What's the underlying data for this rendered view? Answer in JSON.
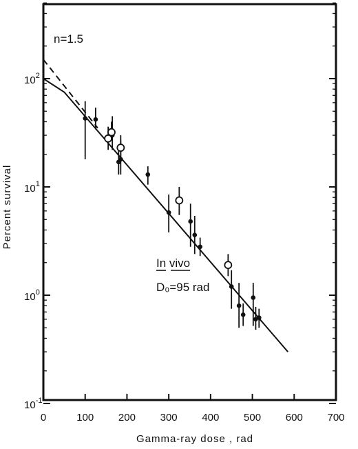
{
  "chart_data": {
    "type": "scatter",
    "title": "",
    "xlabel": "Gamma-ray dose , rad",
    "ylabel": "Percent survival",
    "x_scale": "linear",
    "y_scale": "log",
    "xlim": [
      0,
      700
    ],
    "ylim": [
      0.1,
      500
    ],
    "grid": false,
    "x_ticks": [
      {
        "value": 0,
        "label": "0"
      },
      {
        "value": 100,
        "label": "100"
      },
      {
        "value": 200,
        "label": "200"
      },
      {
        "value": 300,
        "label": "300"
      },
      {
        "value": 400,
        "label": "400"
      },
      {
        "value": 500,
        "label": "500"
      },
      {
        "value": 600,
        "label": "600"
      },
      {
        "value": 700,
        "label": "700"
      }
    ],
    "y_ticks": [
      {
        "value": 100,
        "base": "10",
        "exp": "2"
      },
      {
        "value": 10,
        "base": "10",
        "exp": "1"
      },
      {
        "value": 1,
        "base": "10",
        "exp": "0"
      },
      {
        "value": 0.1,
        "base": "10",
        "exp": "-1"
      }
    ],
    "annotations": {
      "n_label": "n=1.5",
      "condition": "In vivo",
      "d0_label": "D₀=95 rad"
    },
    "fit_line": {
      "x": [
        0,
        50,
        585
      ],
      "y": [
        100,
        75,
        0.3
      ]
    },
    "extrapolation": {
      "x": [
        0,
        130
      ],
      "y": [
        150,
        35
      ]
    },
    "series": [
      {
        "marker": "filled",
        "points": [
          {
            "x": 100,
            "y": 43,
            "lo": 18,
            "hi": 62
          },
          {
            "x": 125,
            "y": 42,
            "lo": 34,
            "hi": 54
          },
          {
            "x": 165,
            "y": 30,
            "lo": 22,
            "hi": 45
          },
          {
            "x": 180,
            "y": 17,
            "lo": 13,
            "hi": 24
          },
          {
            "x": 185,
            "y": 18,
            "lo": 13,
            "hi": 27
          },
          {
            "x": 250,
            "y": 13,
            "lo": 10.5,
            "hi": 15.5
          },
          {
            "x": 300,
            "y": 5.8,
            "lo": 3.8,
            "hi": 8.5
          },
          {
            "x": 352,
            "y": 4.8,
            "lo": 2.8,
            "hi": 7.0
          },
          {
            "x": 362,
            "y": 3.6,
            "lo": 2.4,
            "hi": 5.4
          },
          {
            "x": 375,
            "y": 2.8,
            "lo": 2.3,
            "hi": 3.4
          },
          {
            "x": 450,
            "y": 1.2,
            "lo": 0.75,
            "hi": 1.7
          },
          {
            "x": 468,
            "y": 0.8,
            "lo": 0.5,
            "hi": 1.3
          },
          {
            "x": 478,
            "y": 0.66,
            "lo": 0.52,
            "hi": 0.84
          },
          {
            "x": 502,
            "y": 0.95,
            "lo": 0.52,
            "hi": 1.3
          },
          {
            "x": 508,
            "y": 0.6,
            "lo": 0.48,
            "hi": 0.78
          },
          {
            "x": 516,
            "y": 0.62,
            "lo": 0.5,
            "hi": 0.75
          }
        ]
      },
      {
        "marker": "open",
        "points": [
          {
            "x": 155,
            "y": 28,
            "lo": 22,
            "hi": 36
          },
          {
            "x": 163,
            "y": 32,
            "lo": 27,
            "hi": 40
          },
          {
            "x": 185,
            "y": 23,
            "lo": 18,
            "hi": 30
          },
          {
            "x": 325,
            "y": 7.5,
            "lo": 5.5,
            "hi": 10
          },
          {
            "x": 442,
            "y": 1.9,
            "lo": 1.5,
            "hi": 2.4
          }
        ]
      }
    ]
  }
}
